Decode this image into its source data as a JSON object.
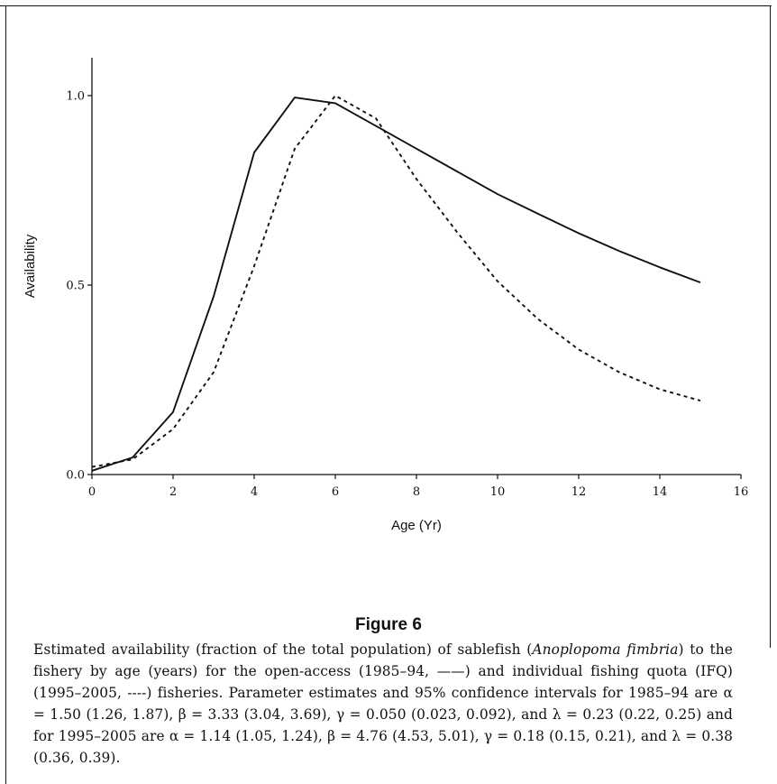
{
  "chart_data": {
    "type": "line",
    "title": "",
    "xlabel": "Age (Yr)",
    "ylabel": "Availability",
    "xlim": [
      0,
      16
    ],
    "ylim": [
      0.0,
      1.0
    ],
    "x_ticks": [
      "0",
      "2",
      "4",
      "6",
      "8",
      "10",
      "12",
      "14",
      "16"
    ],
    "y_ticks": [
      "0.0",
      "0.5",
      "1.0"
    ],
    "grid": false,
    "legend": "none",
    "series": [
      {
        "style": "solid",
        "x": [
          0,
          1,
          2,
          3,
          4,
          5,
          6,
          7,
          8,
          9,
          10,
          11,
          12,
          13,
          14,
          15
        ],
        "y": [
          0.01,
          0.045,
          0.165,
          0.47,
          0.85,
          0.995,
          0.98,
          0.92,
          0.86,
          0.8,
          0.74,
          0.688,
          0.637,
          0.59,
          0.547,
          0.507
        ]
      },
      {
        "style": "dashed",
        "x": [
          0,
          1,
          2,
          3,
          4,
          5,
          6,
          7,
          8,
          9,
          10,
          11,
          12,
          13,
          14,
          15
        ],
        "y": [
          0.02,
          0.04,
          0.12,
          0.27,
          0.55,
          0.86,
          1.0,
          0.94,
          0.78,
          0.64,
          0.51,
          0.41,
          0.33,
          0.27,
          0.225,
          0.195
        ]
      }
    ]
  },
  "figure": {
    "title": "Figure 6",
    "caption": {
      "p1": "Estimated availability (fraction of the total population) of sablefish (",
      "species": "Anoplopoma fimbria",
      "p2": ") to the fishery by age (years) for the open-access (1985–94, ——) and individual fishing quota (IFQ) (1995–2005, ----) fisheries. Parameter estimates and 95% confidence intervals for 1985–94 are α = 1.50 (1.26, 1.87), β = 3.33 (3.04, 3.69), γ = 0.050 (0.023, 0.092), and λ = 0.23 (0.22, 0.25) and for 1995–2005 are α = 1.14 (1.05, 1.24), β = 4.76 (4.53, 5.01), γ = 0.18 (0.15, 0.21), and λ = 0.38 (0.36, 0.39)."
    }
  }
}
